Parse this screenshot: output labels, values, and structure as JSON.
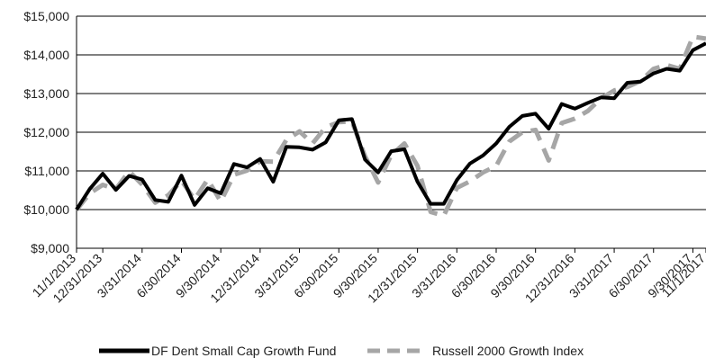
{
  "chart_data": {
    "type": "line",
    "title": "",
    "xlabel": "",
    "ylabel": "",
    "ylim": [
      9000,
      15000
    ],
    "yticks": [
      "$9,000",
      "$10,000",
      "$11,000",
      "$12,000",
      "$13,000",
      "$14,000",
      "$15,000"
    ],
    "ytick_values": [
      9000,
      10000,
      11000,
      12000,
      13000,
      14000,
      15000
    ],
    "x_tick_labels": [
      "11/1/2013",
      "12/31/2013",
      "3/31/2014",
      "6/30/2014",
      "9/30/2014",
      "12/31/2014",
      "3/31/2015",
      "6/30/2015",
      "9/30/2015",
      "12/31/2015",
      "3/31/2016",
      "6/30/2016",
      "9/30/2016",
      "12/31/2016",
      "3/31/2017",
      "6/30/2017",
      "9/30/2017",
      "11/1/2017"
    ],
    "x_tick_months": [
      0,
      2,
      5,
      8,
      11,
      14,
      17,
      20,
      23,
      26,
      29,
      32,
      35,
      38,
      41,
      44,
      47,
      48
    ],
    "x_range_months": [
      0,
      48
    ],
    "grid": "horizontal",
    "legend_position": "bottom",
    "colors": {
      "fund": "#000000",
      "index": "#a6a6a6",
      "grid": "#000000"
    },
    "series": [
      {
        "name": "DF Dent Small Cap Growth Fund",
        "style": "solid",
        "x_months": [
          0,
          1,
          2,
          3,
          4,
          5,
          6,
          7,
          8,
          9,
          10,
          11,
          12,
          13,
          14,
          15,
          16,
          17,
          18,
          19,
          20,
          21,
          22,
          23,
          24,
          25,
          26,
          27,
          28,
          29,
          30,
          31,
          32,
          33,
          34,
          35,
          36,
          37,
          38,
          39,
          40,
          41,
          42,
          43,
          44,
          45,
          46,
          47,
          48
        ],
        "values": [
          10000,
          10530,
          10930,
          10510,
          10870,
          10780,
          10250,
          10200,
          10880,
          10120,
          10550,
          10420,
          11180,
          11090,
          11310,
          10720,
          11620,
          11610,
          11550,
          11740,
          12310,
          12340,
          11290,
          10960,
          11510,
          11560,
          10720,
          10150,
          10150,
          10760,
          11190,
          11400,
          11710,
          12140,
          12420,
          12480,
          12090,
          12730,
          12610,
          12760,
          12900,
          12880,
          13280,
          13310,
          13520,
          13640,
          13590,
          14120,
          14300
        ]
      },
      {
        "name": "Russell 2000 Growth Index",
        "style": "dashed",
        "x_months": [
          0,
          1,
          2,
          3,
          4,
          5,
          6,
          7,
          8,
          9,
          10,
          11,
          12,
          13,
          14,
          15,
          16,
          17,
          18,
          19,
          20,
          21,
          22,
          23,
          24,
          25,
          26,
          27,
          28,
          29,
          30,
          31,
          32,
          33,
          34,
          35,
          36,
          37,
          38,
          39,
          40,
          41,
          42,
          43,
          44,
          45,
          46,
          47,
          48
        ],
        "values": [
          9990,
          10420,
          10640,
          10530,
          10990,
          10650,
          10180,
          10370,
          10750,
          10260,
          10780,
          10210,
          10900,
          11010,
          11250,
          11240,
          11800,
          12020,
          11710,
          12130,
          12260,
          12280,
          11380,
          10700,
          11410,
          11710,
          11130,
          9940,
          9840,
          10560,
          10730,
          10960,
          11130,
          11760,
          12000,
          12060,
          11270,
          12240,
          12350,
          12550,
          12880,
          13080,
          13170,
          13320,
          13640,
          13740,
          13640,
          14470,
          14420
        ]
      }
    ]
  }
}
